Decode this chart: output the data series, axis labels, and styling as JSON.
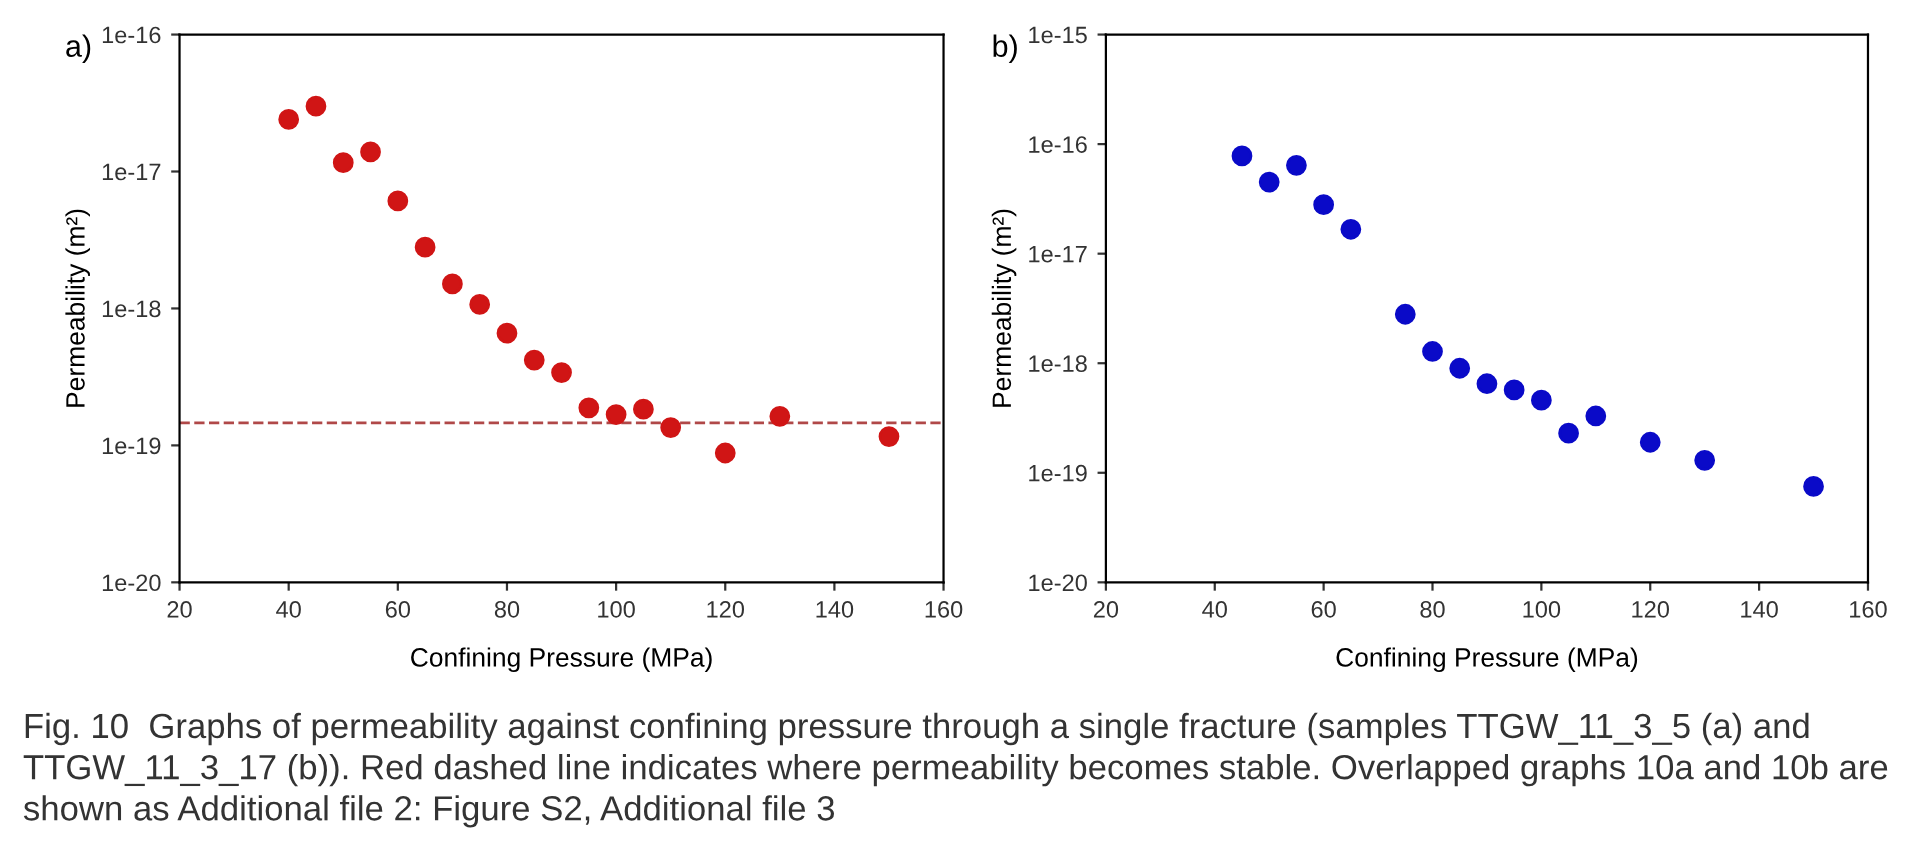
{
  "chart_data": [
    {
      "type": "scatter",
      "title": "a)",
      "xlabel": "Confining Pressure (MPa)",
      "ylabel": "Permeability (m²)",
      "log": "y",
      "marker": "circle",
      "grid": false,
      "legend": false,
      "x": [
        40,
        45,
        50,
        55,
        60,
        65,
        70,
        75,
        80,
        85,
        90,
        95,
        100,
        105,
        110,
        120,
        130,
        150
      ],
      "series": [
        {
          "color": "#d01515",
          "values": [
            2.4e-17,
            3e-17,
            1.16e-17,
            1.39e-17,
            6.1e-18,
            2.8e-18,
            1.51e-18,
            1.07e-18,
            6.6e-19,
            4.2e-19,
            3.4e-19,
            1.88e-19,
            1.68e-19,
            1.84e-19,
            1.35e-19,
            8.8e-20,
            1.63e-19,
            1.16e-19
          ]
        }
      ],
      "xlim": [
        20,
        160
      ],
      "xticks": [
        20,
        40,
        60,
        80,
        100,
        120,
        140,
        160
      ],
      "ylim": [
        1e-20,
        1e-16
      ],
      "yticks": [
        {
          "value": 1e-20,
          "label": "1e-20"
        },
        {
          "value": 1e-19,
          "label": "1e-19"
        },
        {
          "value": 1e-18,
          "label": "1e-18"
        },
        {
          "value": 1e-17,
          "label": "1e-17"
        },
        {
          "value": 1e-16,
          "label": "1e-16"
        }
      ],
      "ref_lines": [
        {
          "axis": "y",
          "value": 1.46e-19,
          "color": "#b04848",
          "line_style": "dashed"
        }
      ],
      "annotations": [
        "Fig. 10  Graphs of permeability against confining pressure through a single fracture (samples TTGW_11_3_5 (a) and TTGW_11_3_17 (b)). Red dashed line indicates where permeability becomes stable. Overlapped graphs 10a and 10b are shown as Additional file 2: Figure S2, Additional file 3"
      ]
    },
    {
      "type": "scatter",
      "title": "b)",
      "xlabel": "Confining Pressure (MPa)",
      "ylabel": "Permeability (m²)",
      "log": "y",
      "marker": "circle",
      "grid": false,
      "legend": false,
      "x": [
        45,
        50,
        55,
        60,
        65,
        75,
        80,
        85,
        90,
        95,
        100,
        105,
        110,
        120,
        130,
        150
      ],
      "series": [
        {
          "color": "#0a0ac8",
          "values": [
            7.8e-17,
            4.5e-17,
            6.4e-17,
            2.8e-17,
            1.67e-17,
            2.8e-18,
            1.28e-18,
            9e-19,
            6.5e-19,
            5.7e-19,
            4.6e-19,
            2.3e-19,
            3.3e-19,
            1.9e-19,
            1.3e-19,
            7.5e-20
          ]
        }
      ],
      "xlim": [
        20,
        160
      ],
      "xticks": [
        20,
        40,
        60,
        80,
        100,
        120,
        140,
        160
      ],
      "ylim": [
        1e-20,
        1e-15
      ],
      "yticks": [
        {
          "value": 1e-20,
          "label": "1e-20"
        },
        {
          "value": 1e-19,
          "label": "1e-19"
        },
        {
          "value": 1e-18,
          "label": "1e-18"
        },
        {
          "value": 1e-17,
          "label": "1e-17"
        },
        {
          "value": 1e-16,
          "label": "1e-16"
        },
        {
          "value": 1e-15,
          "label": "1e-15"
        }
      ]
    }
  ]
}
